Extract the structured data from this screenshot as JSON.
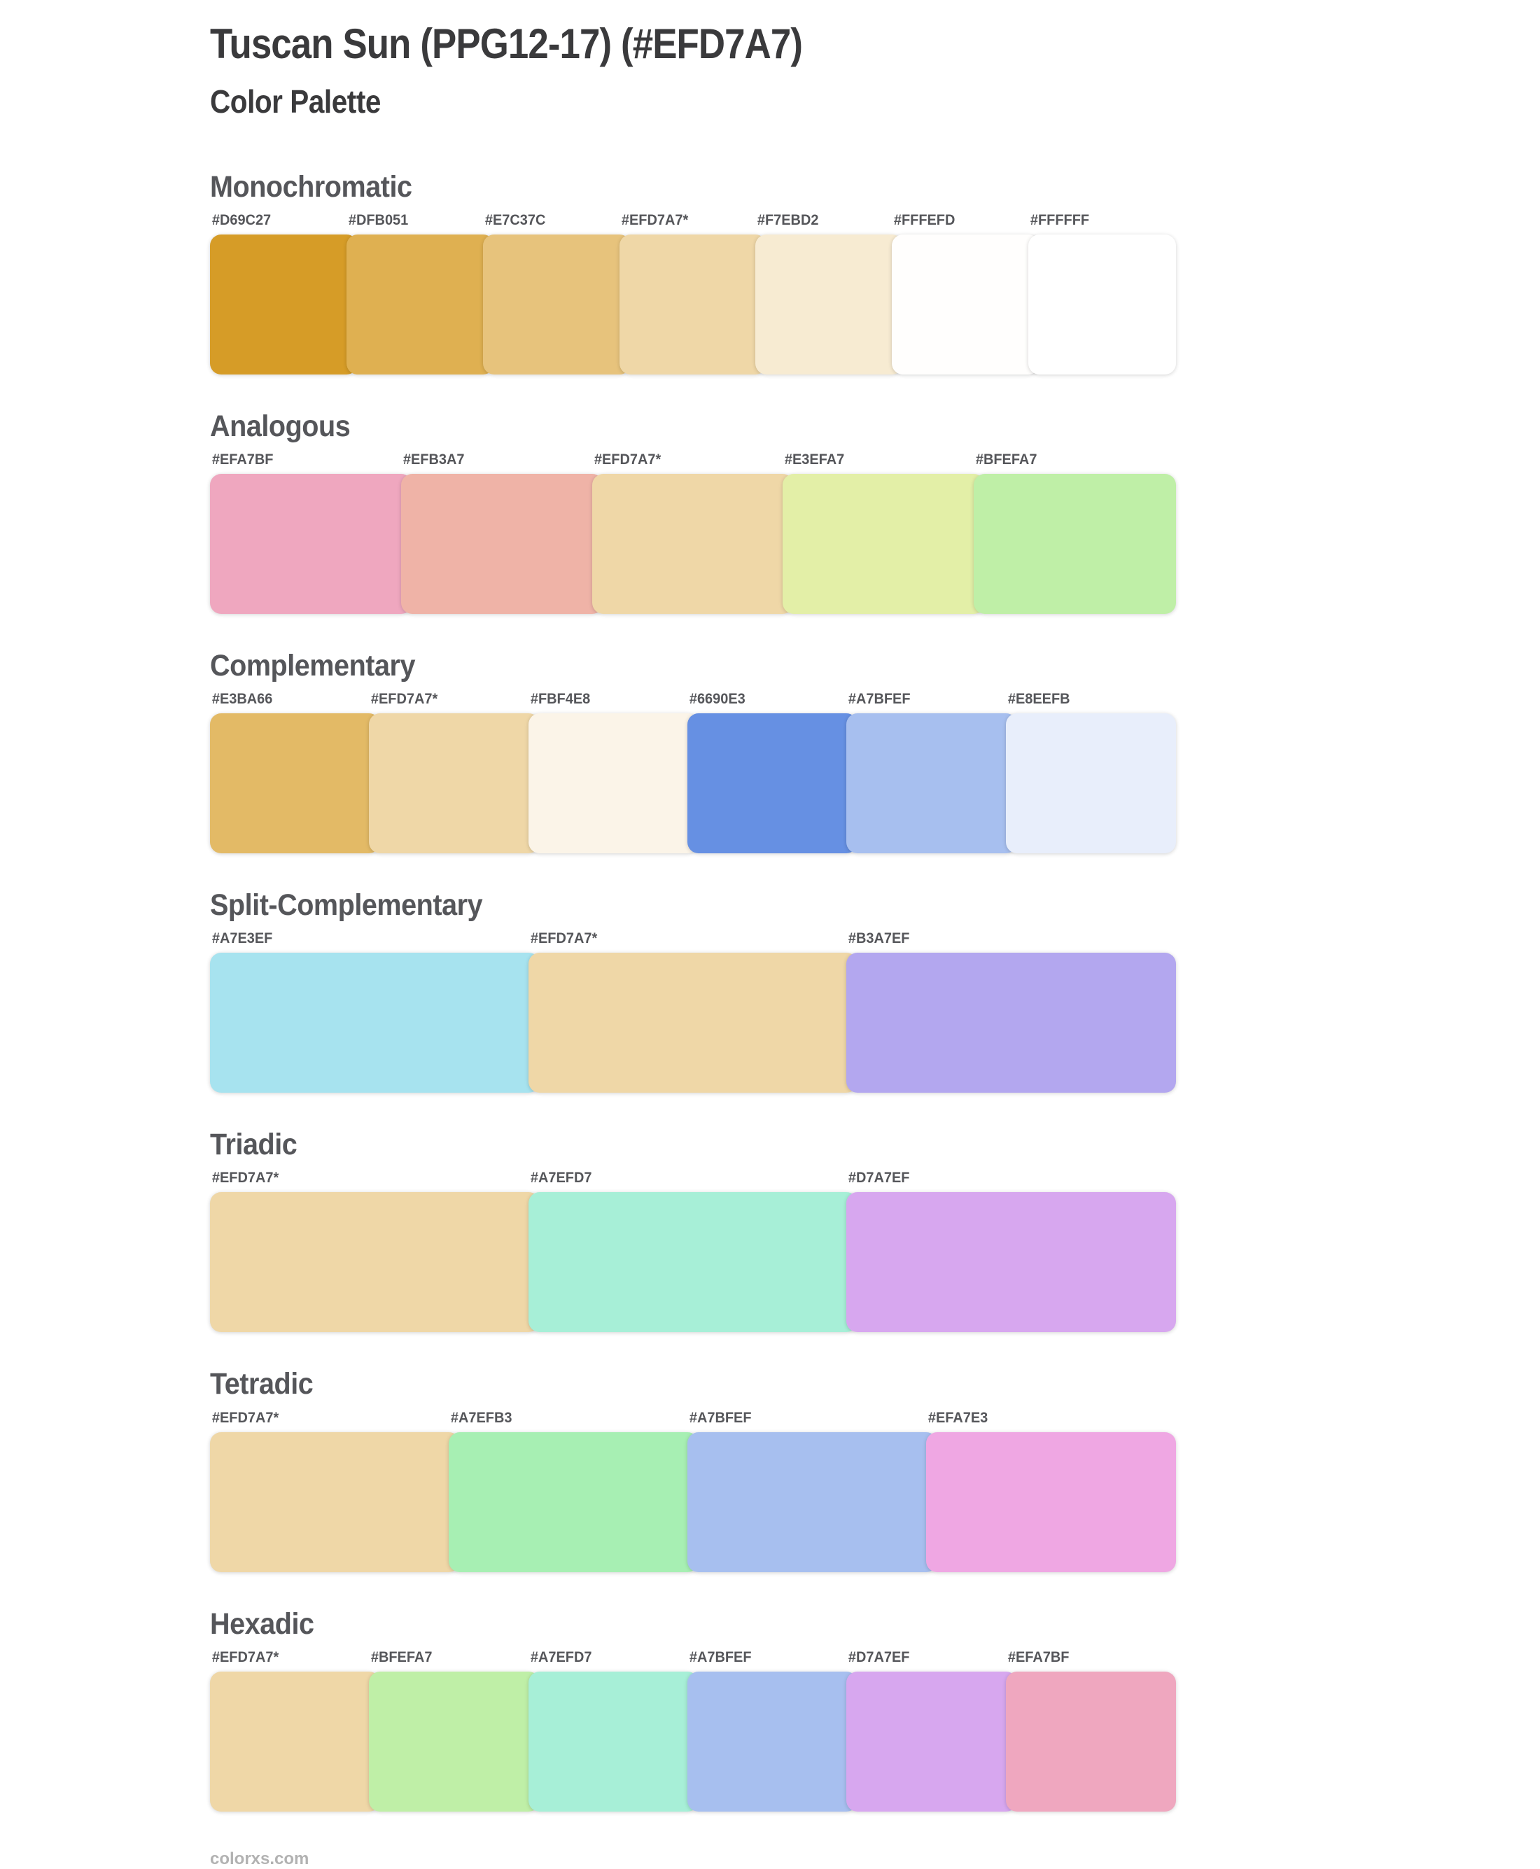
{
  "page": {
    "title": "Tuscan Sun (PPG12-17) (#EFD7A7)",
    "subtitle": "Color Palette",
    "footer": "colorxs.com",
    "base_color": "#EFD7A7"
  },
  "theme": {
    "background": "#FFFFFF",
    "title_color": "#3A3A3C",
    "heading_color": "#55565A",
    "label_color": "#55565A",
    "footer_color": "#B2B2B2"
  },
  "sections": [
    {
      "name": "Monochromatic",
      "swatches": [
        {
          "label": "#D69C27",
          "hex": "#D69C27"
        },
        {
          "label": "#DFB051",
          "hex": "#DFB051"
        },
        {
          "label": "#E7C37C",
          "hex": "#E7C37C"
        },
        {
          "label": "#EFD7A7*",
          "hex": "#EFD7A7"
        },
        {
          "label": "#F7EBD2",
          "hex": "#F7EBD2"
        },
        {
          "label": "#FFFEFD",
          "hex": "#FFFEFD"
        },
        {
          "label": "#FFFFFF",
          "hex": "#FFFFFF"
        }
      ]
    },
    {
      "name": "Analogous",
      "swatches": [
        {
          "label": "#EFA7BF",
          "hex": "#EFA7BF"
        },
        {
          "label": "#EFB3A7",
          "hex": "#EFB3A7"
        },
        {
          "label": "#EFD7A7*",
          "hex": "#EFD7A7"
        },
        {
          "label": "#E3EFA7",
          "hex": "#E3EFA7"
        },
        {
          "label": "#BFEFA7",
          "hex": "#BFEFA7"
        }
      ]
    },
    {
      "name": "Complementary",
      "swatches": [
        {
          "label": "#E3BA66",
          "hex": "#E3BA66"
        },
        {
          "label": "#EFD7A7*",
          "hex": "#EFD7A7"
        },
        {
          "label": "#FBF4E8",
          "hex": "#FBF4E8"
        },
        {
          "label": "#6690E3",
          "hex": "#6690E3"
        },
        {
          "label": "#A7BFEF",
          "hex": "#A7BFEF"
        },
        {
          "label": "#E8EEFB",
          "hex": "#E8EEFB"
        }
      ]
    },
    {
      "name": "Split-Complementary",
      "swatches": [
        {
          "label": "#A7E3EF",
          "hex": "#A7E3EF"
        },
        {
          "label": "#EFD7A7*",
          "hex": "#EFD7A7"
        },
        {
          "label": "#B3A7EF",
          "hex": "#B3A7EF"
        }
      ]
    },
    {
      "name": "Triadic",
      "swatches": [
        {
          "label": "#EFD7A7*",
          "hex": "#EFD7A7"
        },
        {
          "label": "#A7EFD7",
          "hex": "#A7EFD7"
        },
        {
          "label": "#D7A7EF",
          "hex": "#D7A7EF"
        }
      ]
    },
    {
      "name": "Tetradic",
      "swatches": [
        {
          "label": "#EFD7A7*",
          "hex": "#EFD7A7"
        },
        {
          "label": "#A7EFB3",
          "hex": "#A7EFB3"
        },
        {
          "label": "#A7BFEF",
          "hex": "#A7BFEF"
        },
        {
          "label": "#EFA7E3",
          "hex": "#EFA7E3"
        }
      ]
    },
    {
      "name": "Hexadic",
      "swatches": [
        {
          "label": "#EFD7A7*",
          "hex": "#EFD7A7"
        },
        {
          "label": "#BFEFA7",
          "hex": "#BFEFA7"
        },
        {
          "label": "#A7EFD7",
          "hex": "#A7EFD7"
        },
        {
          "label": "#A7BFEF",
          "hex": "#A7BFEF"
        },
        {
          "label": "#D7A7EF",
          "hex": "#D7A7EF"
        },
        {
          "label": "#EFA7BF",
          "hex": "#EFA7BF"
        }
      ]
    }
  ]
}
